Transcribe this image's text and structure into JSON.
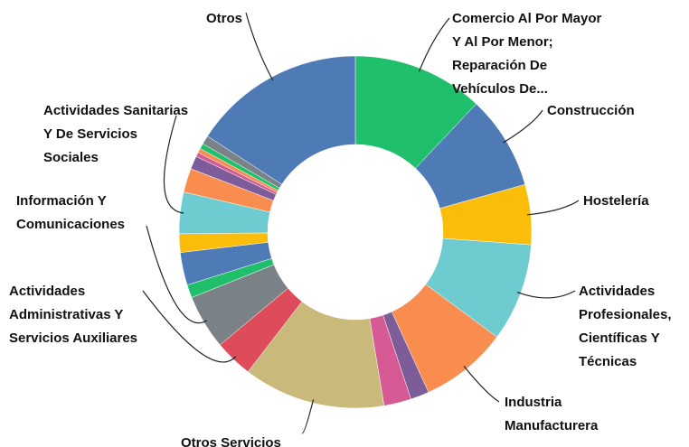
{
  "chart_data": {
    "type": "donut",
    "categories": [
      "Comercio Al Por Mayor Y Al Por Menor; Reparación De Vehículos De...",
      "Construcción",
      "Hostelería",
      "Actividades Profesionales, Científicas Y Técnicas",
      "Industria Manufacturera",
      null,
      null,
      "Otros Servicios",
      "Actividades Administrativas Y Servicios Auxiliares",
      "Información Y Comunicaciones",
      null,
      null,
      null,
      "Actividades Sanitarias Y De Servicios Sociales",
      null,
      null,
      null,
      null,
      null,
      null,
      "Otros"
    ],
    "values": [
      12,
      8.6,
      5.5,
      9,
      8,
      1.7,
      2.5,
      13,
      3.5,
      5,
      1.2,
      3,
      1.7,
      3.8,
      2.2,
      1.2,
      0.4,
      0.4,
      0.5,
      0.8,
      15.8
    ],
    "colors": [
      "#1fbf6b",
      "#4e7ab5",
      "#f9bd0a",
      "#6ecbcf",
      "#f98d4f",
      "#7c5c99",
      "#d65a94",
      "#c9b97a",
      "#de4b5a",
      "#7a8187",
      "#1fbf6b",
      "#4e7ab5",
      "#f9bd0a",
      "#6ecbcf",
      "#f98d4f",
      "#7c5c99",
      "#d65a94",
      "#f98d4f",
      "#1fbf6b",
      "#7a8187",
      "#4e7ab5"
    ]
  }
}
